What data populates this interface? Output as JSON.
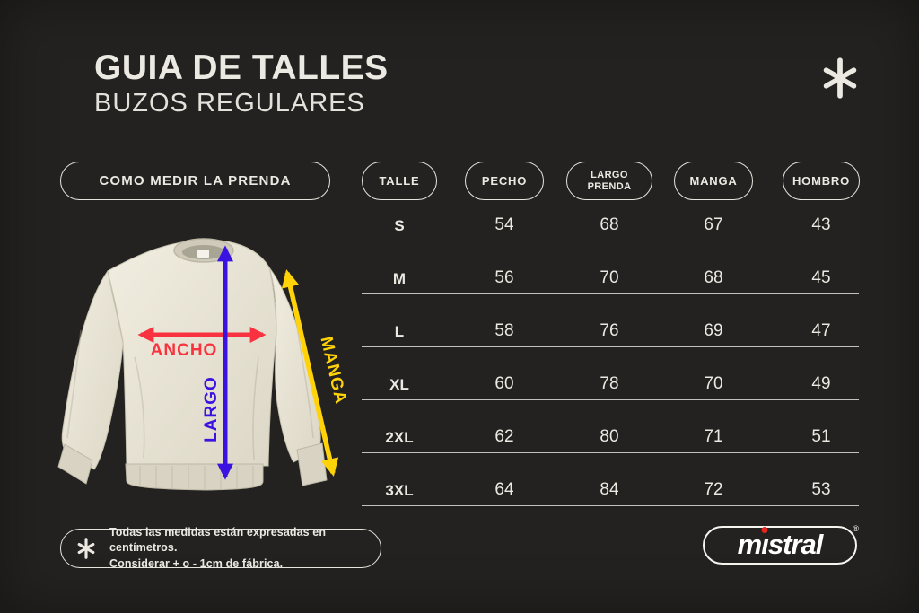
{
  "header": {
    "title": "GUIA DE TALLES",
    "subtitle": "BUZOS REGULARES"
  },
  "measure_panel": {
    "button_label": "COMO MEDIR LA PRENDA",
    "arrow_labels": {
      "width": "ANCHO",
      "length": "LARGO",
      "sleeve": "MANGA"
    },
    "arrow_colors": {
      "width": "#f8333f",
      "length": "#3a13e0",
      "sleeve": "#ffd307"
    }
  },
  "size_table": {
    "columns": [
      {
        "key": "talle",
        "label": "TALLE"
      },
      {
        "key": "pecho",
        "label": "PECHO"
      },
      {
        "key": "largo_prenda",
        "label": "LARGO PRENDA"
      },
      {
        "key": "manga",
        "label": "MANGA"
      },
      {
        "key": "hombro",
        "label": "HOMBRO"
      }
    ],
    "rows": [
      {
        "talle": "S",
        "pecho": "54",
        "largo_prenda": "68",
        "manga": "67",
        "hombro": "43"
      },
      {
        "talle": "M",
        "pecho": "56",
        "largo_prenda": "70",
        "manga": "68",
        "hombro": "45"
      },
      {
        "talle": "L",
        "pecho": "58",
        "largo_prenda": "76",
        "manga": "69",
        "hombro": "47"
      },
      {
        "talle": "XL",
        "pecho": "60",
        "largo_prenda": "78",
        "manga": "70",
        "hombro": "49"
      },
      {
        "talle": "2XL",
        "pecho": "62",
        "largo_prenda": "80",
        "manga": "71",
        "hombro": "51"
      },
      {
        "talle": "3XL",
        "pecho": "64",
        "largo_prenda": "84",
        "manga": "72",
        "hombro": "53"
      }
    ]
  },
  "footnote": {
    "line1": "Todas las medidas están expresadas en centímetros.",
    "line2": "Considerar + o - 1cm de fábrica."
  },
  "brand": {
    "name": "mistral",
    "registered": "®",
    "dot_color": "#e8241d"
  }
}
